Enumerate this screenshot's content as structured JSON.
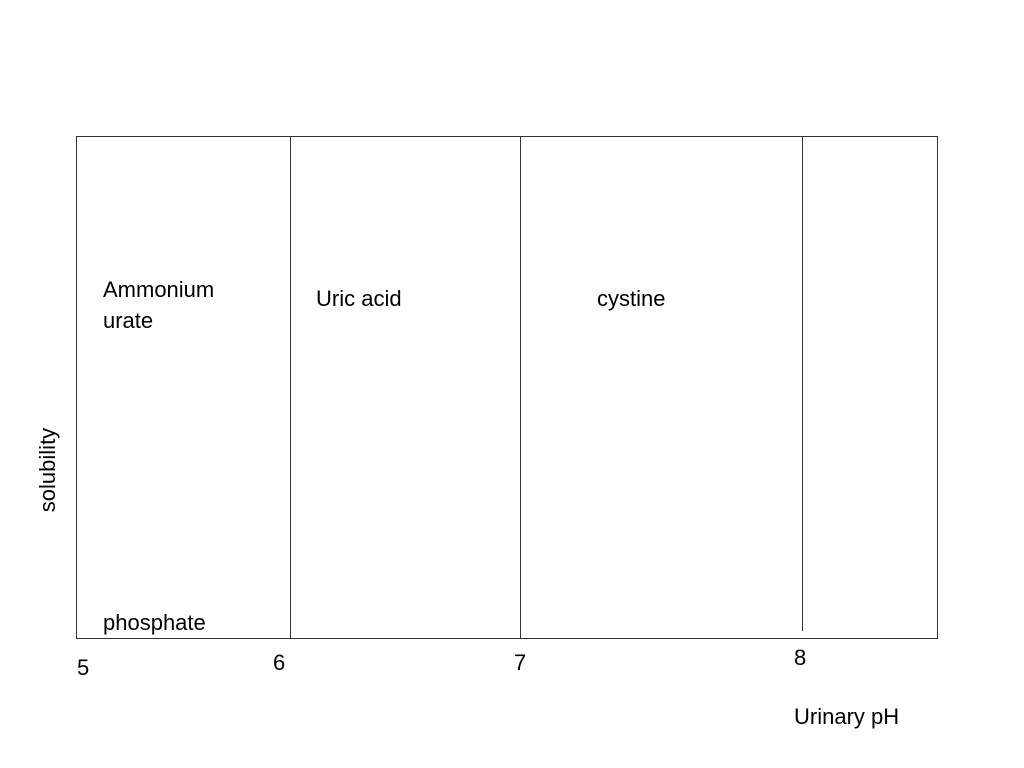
{
  "diagram": {
    "y_axis_label": "solubility",
    "x_axis_label": "Urinary pH",
    "ph_ticks": [
      "5",
      "6",
      "7",
      "8"
    ],
    "regions": [
      {
        "line1": "Ammonium",
        "line2": "urate"
      },
      {
        "label": "Uric acid"
      },
      {
        "label": "cystine"
      }
    ],
    "bottom_label": "phosphate"
  }
}
